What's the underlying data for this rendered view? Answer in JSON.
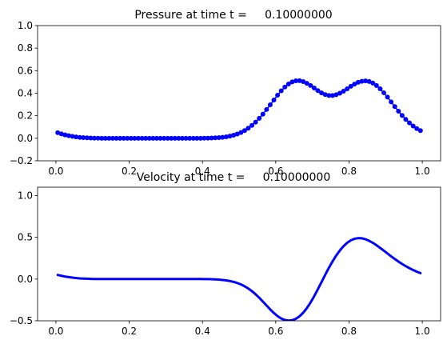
{
  "chart_data": [
    {
      "type": "scatter",
      "title": "Pressure at time t =     0.10000000",
      "xlabel": "",
      "ylabel": "",
      "xlim": [
        -0.05,
        1.05
      ],
      "ylim": [
        -0.2,
        1.0
      ],
      "xticks": [
        0.0,
        0.2,
        0.4,
        0.6,
        0.8,
        1.0
      ],
      "xtick_labels": [
        "0.0",
        "0.2",
        "0.4",
        "0.6",
        "0.8",
        "1.0"
      ],
      "yticks": [
        -0.2,
        0.0,
        0.2,
        0.4,
        0.6,
        0.8,
        1.0
      ],
      "ytick_labels": [
        "−0.2",
        "0.0",
        "0.2",
        "0.4",
        "0.6",
        "0.8",
        "1.0"
      ],
      "grid": false,
      "color": "#0000ff",
      "marker": "circle-with-line",
      "x": [
        0.005,
        0.015,
        0.025,
        0.035,
        0.045,
        0.055,
        0.065,
        0.075,
        0.085,
        0.095,
        0.105,
        0.115,
        0.125,
        0.135,
        0.145,
        0.155,
        0.165,
        0.175,
        0.185,
        0.195,
        0.205,
        0.215,
        0.225,
        0.235,
        0.245,
        0.255,
        0.265,
        0.275,
        0.285,
        0.295,
        0.305,
        0.315,
        0.325,
        0.335,
        0.345,
        0.355,
        0.365,
        0.375,
        0.385,
        0.395,
        0.405,
        0.415,
        0.425,
        0.435,
        0.445,
        0.455,
        0.465,
        0.475,
        0.485,
        0.495,
        0.505,
        0.515,
        0.525,
        0.535,
        0.545,
        0.555,
        0.565,
        0.575,
        0.585,
        0.595,
        0.605,
        0.615,
        0.625,
        0.635,
        0.645,
        0.655,
        0.665,
        0.675,
        0.685,
        0.695,
        0.705,
        0.715,
        0.725,
        0.735,
        0.745,
        0.755,
        0.765,
        0.775,
        0.785,
        0.795,
        0.805,
        0.815,
        0.825,
        0.835,
        0.845,
        0.855,
        0.865,
        0.875,
        0.885,
        0.895,
        0.905,
        0.915,
        0.925,
        0.935,
        0.945,
        0.955,
        0.965,
        0.975,
        0.985,
        0.995
      ],
      "y": [
        0.049,
        0.039,
        0.03,
        0.023,
        0.017,
        0.012,
        0.008,
        0.006,
        0.004,
        0.002,
        0.001,
        0.001,
        0.0,
        0.0,
        0.0,
        0.0,
        0.0,
        0.0,
        0.0,
        0.0,
        0.0,
        0.0,
        0.0,
        0.0,
        0.0,
        0.0,
        0.0,
        0.0,
        0.0,
        0.0,
        0.0,
        0.0,
        0.0,
        0.0,
        0.0,
        0.0,
        0.0,
        0.0,
        0.0,
        0.0,
        0.001,
        0.001,
        0.002,
        0.004,
        0.006,
        0.009,
        0.013,
        0.019,
        0.027,
        0.038,
        0.051,
        0.068,
        0.089,
        0.114,
        0.143,
        0.177,
        0.214,
        0.255,
        0.297,
        0.34,
        0.382,
        0.421,
        0.455,
        0.482,
        0.5,
        0.51,
        0.511,
        0.503,
        0.488,
        0.468,
        0.446,
        0.423,
        0.403,
        0.388,
        0.38,
        0.38,
        0.387,
        0.4,
        0.418,
        0.439,
        0.461,
        0.481,
        0.497,
        0.506,
        0.509,
        0.504,
        0.49,
        0.468,
        0.439,
        0.404,
        0.365,
        0.323,
        0.281,
        0.24,
        0.202,
        0.167,
        0.136,
        0.109,
        0.086,
        0.068
      ]
    },
    {
      "type": "line",
      "title": "Velocity at time t =     0.10000000",
      "xlabel": "",
      "ylabel": "",
      "xlim": [
        -0.05,
        1.05
      ],
      "ylim": [
        -0.5,
        1.1
      ],
      "xticks": [
        0.0,
        0.2,
        0.4,
        0.6,
        0.8,
        1.0
      ],
      "xtick_labels": [
        "0.0",
        "0.2",
        "0.4",
        "0.6",
        "0.8",
        "1.0"
      ],
      "yticks": [
        -0.5,
        0.0,
        0.5,
        1.0
      ],
      "ytick_labels": [
        "−0.5",
        "0.0",
        "0.5",
        "1.0"
      ],
      "grid": false,
      "color": "#0000ff",
      "x": [
        0.005,
        0.015,
        0.025,
        0.035,
        0.045,
        0.055,
        0.065,
        0.075,
        0.085,
        0.095,
        0.105,
        0.115,
        0.125,
        0.135,
        0.145,
        0.155,
        0.165,
        0.175,
        0.185,
        0.195,
        0.205,
        0.215,
        0.225,
        0.235,
        0.245,
        0.255,
        0.265,
        0.275,
        0.285,
        0.295,
        0.305,
        0.315,
        0.325,
        0.335,
        0.345,
        0.355,
        0.365,
        0.375,
        0.385,
        0.395,
        0.405,
        0.415,
        0.425,
        0.435,
        0.445,
        0.455,
        0.465,
        0.475,
        0.485,
        0.495,
        0.505,
        0.515,
        0.525,
        0.535,
        0.545,
        0.555,
        0.565,
        0.575,
        0.585,
        0.595,
        0.605,
        0.615,
        0.625,
        0.635,
        0.645,
        0.655,
        0.665,
        0.675,
        0.685,
        0.695,
        0.705,
        0.715,
        0.725,
        0.735,
        0.745,
        0.755,
        0.765,
        0.775,
        0.785,
        0.795,
        0.805,
        0.815,
        0.825,
        0.835,
        0.845,
        0.855,
        0.865,
        0.875,
        0.885,
        0.895,
        0.905,
        0.915,
        0.925,
        0.935,
        0.945,
        0.955,
        0.965,
        0.975,
        0.985,
        0.995
      ],
      "y": [
        0.049,
        0.039,
        0.03,
        0.023,
        0.017,
        0.012,
        0.008,
        0.006,
        0.004,
        0.002,
        0.001,
        0.001,
        0.0,
        0.0,
        0.0,
        0.0,
        0.0,
        0.0,
        0.0,
        0.0,
        0.0,
        0.0,
        0.0,
        0.0,
        0.0,
        0.0,
        0.0,
        0.0,
        0.0,
        0.0,
        0.0,
        0.0,
        0.0,
        0.0,
        0.0,
        0.0,
        0.0,
        0.0,
        0.0,
        0.0,
        -0.001,
        -0.001,
        -0.002,
        -0.004,
        -0.007,
        -0.011,
        -0.016,
        -0.024,
        -0.034,
        -0.047,
        -0.064,
        -0.086,
        -0.113,
        -0.145,
        -0.182,
        -0.224,
        -0.27,
        -0.317,
        -0.364,
        -0.407,
        -0.444,
        -0.472,
        -0.49,
        -0.497,
        -0.493,
        -0.476,
        -0.446,
        -0.403,
        -0.348,
        -0.281,
        -0.205,
        -0.122,
        -0.036,
        0.05,
        0.134,
        0.211,
        0.281,
        0.342,
        0.393,
        0.434,
        0.464,
        0.482,
        0.49,
        0.488,
        0.477,
        0.458,
        0.434,
        0.405,
        0.373,
        0.34,
        0.306,
        0.272,
        0.24,
        0.209,
        0.18,
        0.154,
        0.13,
        0.108,
        0.088,
        0.071
      ]
    }
  ]
}
